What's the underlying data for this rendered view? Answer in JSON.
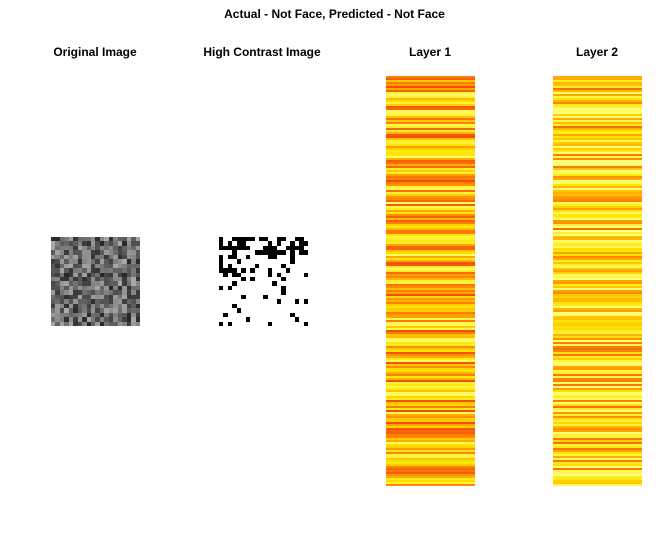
{
  "title": "Actual - Not Face, Predicted - Not Face",
  "panels": {
    "original": {
      "label": "Original Image"
    },
    "contrast": {
      "label": "High Contrast Image"
    },
    "layer1": {
      "label": "Layer 1"
    },
    "layer2": {
      "label": "Layer 2"
    }
  },
  "colors": {
    "heat_red": "#f03c0a",
    "heat_orange": "#ff8c00",
    "heat_yellow": "#ffe600",
    "black": "#000000",
    "white": "#ffffff"
  }
}
